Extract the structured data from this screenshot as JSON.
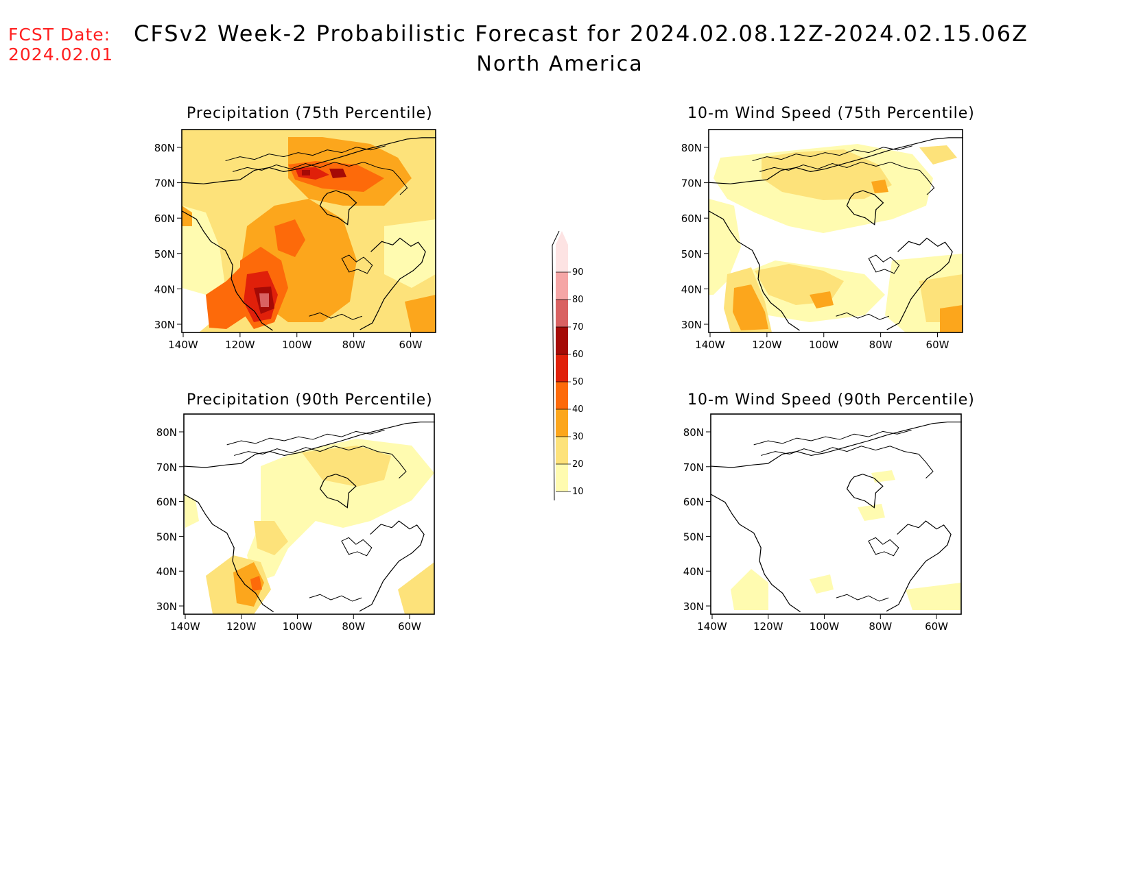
{
  "header": {
    "fcst_label": "FCST Date:",
    "fcst_date": "2024.02.01",
    "title": "CFSv2 Week-2 Probabilistic Forecast for 2024.02.08.12Z-2024.02.15.06Z",
    "subtitle": "North America"
  },
  "panels": [
    {
      "id": "precip75",
      "title": "Precipitation (75th Percentile)",
      "overall_level": "high"
    },
    {
      "id": "wind75",
      "title": "10-m Wind Speed (75th Percentile)",
      "overall_level": "moderate"
    },
    {
      "id": "precip90",
      "title": "Precipitation (90th Percentile)",
      "overall_level": "moderate"
    },
    {
      "id": "wind90",
      "title": "10-m Wind Speed (90th Percentile)",
      "overall_level": "low"
    }
  ],
  "axes": {
    "lat_ticks": [
      "80N",
      "70N",
      "60N",
      "50N",
      "40N",
      "30N"
    ],
    "lon_ticks": [
      "140W",
      "120W",
      "100W",
      "80W",
      "60W"
    ]
  },
  "colorbar": {
    "levels": [
      "10",
      "20",
      "30",
      "40",
      "50",
      "60",
      "70",
      "80",
      "90"
    ],
    "colors": [
      "#fffbb0",
      "#fde27a",
      "#fca61c",
      "#fd6a0a",
      "#e0200a",
      "#a50a06",
      "#d96262",
      "#f5a6a6",
      "#fde3e3"
    ]
  }
}
